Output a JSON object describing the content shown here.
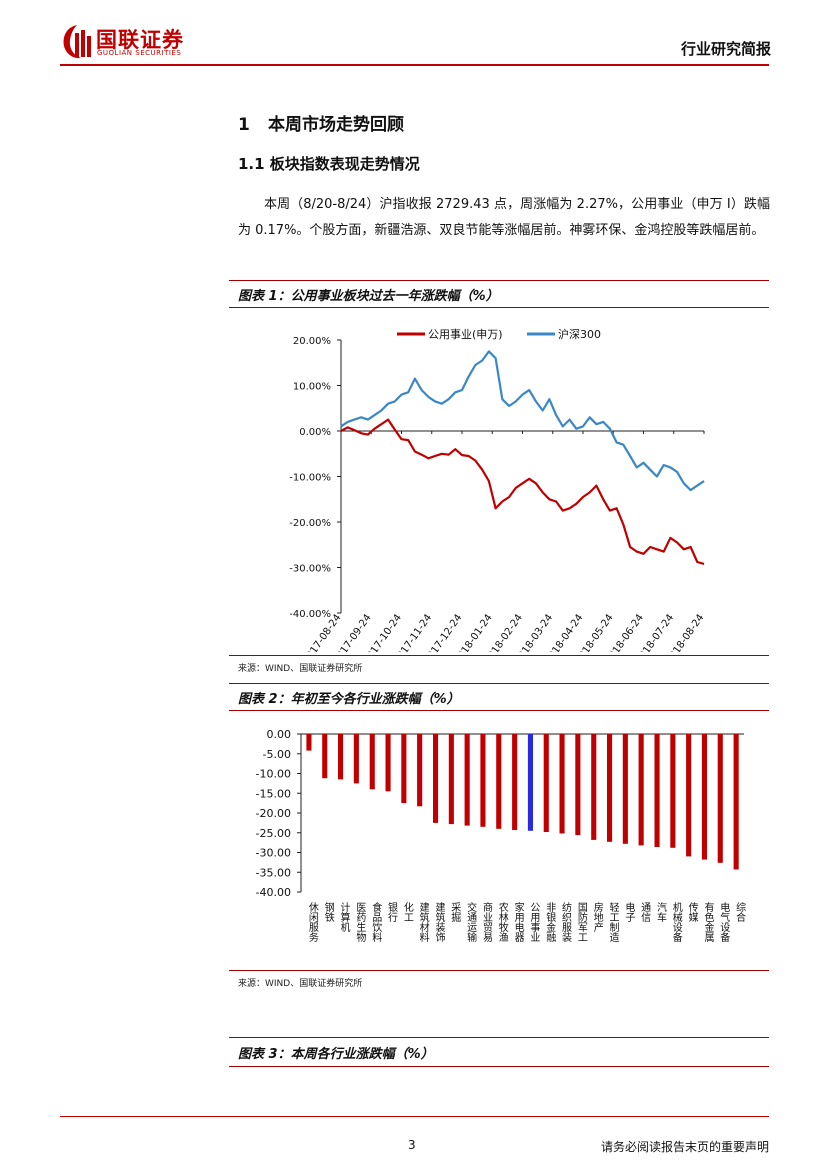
{
  "header": {
    "brand_cn": "国联证券",
    "brand_en": "GUOLIAN SECURITIES",
    "report_type": "行业研究简报",
    "colors": {
      "brand_red": "#c00000"
    }
  },
  "section": {
    "number": "1",
    "title": "本周市场走势回顾"
  },
  "subsection": {
    "title": "1.1 板块指数表现走势情况"
  },
  "paragraph": "本周（8/20-8/24）沪指收报 2729.43 点，周涨幅为 2.27%，公用事业（申万 I）跌幅为 0.17%。个股方面，新疆浩源、双良节能等涨幅居前。神雾环保、金鸿控股等跌幅居前。",
  "figure1": {
    "title": "图表 1：公用事业板块过去一年涨跌幅（%）",
    "source": "来源：WIND、国联证券研究所"
  },
  "figure2": {
    "title": "图表 2：年初至今各行业涨跌幅（%）",
    "source": "来源：WIND、国联证券研究所"
  },
  "figure3": {
    "title": "图表 3：本周各行业涨跌幅（%）"
  },
  "footer": {
    "page": "3",
    "disclaimer": "请务必阅读报告末页的重要声明"
  },
  "chart_data": [
    {
      "type": "line",
      "title": "公用事业板块过去一年涨跌幅（%）",
      "ylim": [
        -40,
        20
      ],
      "yticks": [
        20,
        10,
        0,
        -10,
        -20,
        -30,
        -40
      ],
      "ytick_labels": [
        "20.00%",
        "10.00%",
        "0.00%",
        "-10.00%",
        "-20.00%",
        "-30.00%",
        "-40.00%"
      ],
      "xtick_labels": [
        "2017-08-24",
        "2017-09-24",
        "2017-10-24",
        "2017-11-24",
        "2017-12-24",
        "2018-01-24",
        "2018-02-24",
        "2018-03-24",
        "2018-04-24",
        "2018-05-24",
        "2018-06-24",
        "2018-07-24",
        "2018-08-24"
      ],
      "legend_position": "top",
      "series": [
        {
          "name": "公用事业(申万)",
          "color": "#c00000",
          "values": [
            0,
            0.8,
            0.2,
            -0.5,
            -0.8,
            0.5,
            1.5,
            2.5,
            0.3,
            -1.8,
            -2.0,
            -4.5,
            -5.2,
            -6.0,
            -5.5,
            -5.0,
            -5.2,
            -4.0,
            -5.3,
            -5.5,
            -6.5,
            -8.5,
            -11.0,
            -17.0,
            -15.5,
            -14.5,
            -12.5,
            -11.5,
            -10.5,
            -11.5,
            -13.5,
            -15.0,
            -15.5,
            -17.5,
            -17.0,
            -16.0,
            -14.5,
            -13.5,
            -12.0,
            -15.0,
            -17.5,
            -17.0,
            -20.5,
            -25.5,
            -26.5,
            -27.0,
            -25.5,
            -26.0,
            -26.5,
            -23.5,
            -24.5,
            -26.0,
            -25.5,
            -28.8,
            -29.2
          ]
        },
        {
          "name": "沪深300",
          "color": "#3a87c8",
          "values": [
            1.0,
            2.0,
            2.5,
            3.0,
            2.5,
            3.5,
            4.5,
            6.0,
            6.5,
            8.0,
            8.5,
            11.5,
            9.0,
            7.5,
            6.5,
            6.0,
            7.0,
            8.5,
            9.0,
            12.0,
            14.5,
            15.5,
            17.5,
            16.0,
            7.0,
            5.5,
            6.5,
            8.0,
            9.0,
            6.5,
            4.5,
            7.0,
            3.5,
            1.0,
            2.5,
            0.5,
            1.0,
            3.0,
            1.5,
            2.0,
            0.5,
            -2.5,
            -3.0,
            -5.5,
            -8.0,
            -7.0,
            -8.5,
            -10.0,
            -7.5,
            -8.0,
            -9.0,
            -11.5,
            -13.0,
            -12.0,
            -11.0
          ]
        }
      ]
    },
    {
      "type": "bar",
      "title": "年初至今各行业涨跌幅（%）",
      "ylim": [
        -40,
        0
      ],
      "yticks": [
        0,
        -5,
        -10,
        -15,
        -20,
        -25,
        -30,
        -35,
        -40
      ],
      "ytick_labels": [
        "0.00",
        "-5.00",
        "-10.00",
        "-15.00",
        "-20.00",
        "-25.00",
        "-30.00",
        "-35.00",
        "-40.00"
      ],
      "categories": [
        "休闲服务",
        "钢铁",
        "计算机",
        "医药生物",
        "食品饮料",
        "银行",
        "化工",
        "建筑材料",
        "建筑装饰",
        "采掘",
        "交通运输",
        "商业贸易",
        "农林牧渔",
        "家用电器",
        "公用事业",
        "非银金融",
        "纺织服装",
        "国防军工",
        "房地产",
        "轻工制造",
        "电子",
        "通信",
        "汽车",
        "机械设备",
        "传媒",
        "有色金属",
        "电气设备",
        "综合"
      ],
      "values": [
        -4.2,
        -11.2,
        -11.5,
        -12.5,
        -14.0,
        -14.5,
        -17.5,
        -18.3,
        -22.5,
        -22.8,
        -23.2,
        -23.5,
        -24.0,
        -24.3,
        -24.5,
        -24.8,
        -25.2,
        -25.6,
        -26.8,
        -27.3,
        -27.8,
        -28.2,
        -28.6,
        -28.8,
        -31.0,
        -31.8,
        -32.6,
        -34.3
      ],
      "bar_color": "#c00000",
      "highlight_category": "公用事业",
      "highlight_color": "#2a2ae0"
    }
  ]
}
